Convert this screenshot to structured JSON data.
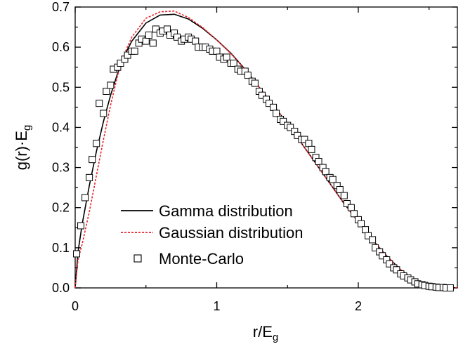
{
  "chart_data": {
    "type": "line",
    "xlabel": {
      "base": "r/E",
      "sub": "g"
    },
    "ylabel": {
      "base": "g(r)·E",
      "sub": "g"
    },
    "xlim": [
      0,
      2.7
    ],
    "ylim": [
      0,
      0.7
    ],
    "xticks": [
      "0",
      "1",
      "2"
    ],
    "xtick_values": [
      0,
      1,
      2
    ],
    "yticks": [
      "0.0",
      "0.1",
      "0.2",
      "0.3",
      "0.4",
      "0.5",
      "0.6",
      "0.7"
    ],
    "ytick_values": [
      0.0,
      0.1,
      0.2,
      0.3,
      0.4,
      0.5,
      0.6,
      0.7
    ],
    "grid": false,
    "legend_position": "center-left",
    "series": [
      {
        "name": "Gamma distribution",
        "style": "solid-line",
        "color": "#000000",
        "x": [
          0,
          0.02,
          0.05,
          0.1,
          0.15,
          0.2,
          0.25,
          0.3,
          0.35,
          0.4,
          0.5,
          0.6,
          0.7,
          0.8,
          0.9,
          1.0,
          1.1,
          1.2,
          1.3,
          1.4,
          1.5,
          1.6,
          1.7,
          1.8,
          1.9,
          2.0,
          2.1,
          2.2,
          2.3,
          2.4,
          2.5,
          2.6,
          2.7
        ],
        "y": [
          0.0,
          0.09,
          0.16,
          0.255,
          0.34,
          0.415,
          0.48,
          0.535,
          0.58,
          0.615,
          0.66,
          0.68,
          0.682,
          0.67,
          0.647,
          0.618,
          0.585,
          0.545,
          0.5,
          0.455,
          0.41,
          0.36,
          0.31,
          0.26,
          0.21,
          0.165,
          0.12,
          0.08,
          0.045,
          0.02,
          0.007,
          0.002,
          0.0
        ]
      },
      {
        "name": "Gaussian distribution",
        "style": "dashed-line",
        "color": "#e8262b",
        "x": [
          0,
          0.02,
          0.05,
          0.1,
          0.15,
          0.2,
          0.25,
          0.3,
          0.35,
          0.4,
          0.5,
          0.6,
          0.7,
          0.8,
          0.9,
          1.0,
          1.1,
          1.2,
          1.3,
          1.4,
          1.5,
          1.6,
          1.7,
          1.8,
          1.9,
          2.0,
          2.1,
          2.2,
          2.3,
          2.4,
          2.5,
          2.6,
          2.7
        ],
        "y": [
          0.0,
          0.07,
          0.11,
          0.19,
          0.28,
          0.37,
          0.455,
          0.53,
          0.585,
          0.625,
          0.672,
          0.688,
          0.69,
          0.674,
          0.649,
          0.618,
          0.584,
          0.545,
          0.5,
          0.455,
          0.41,
          0.36,
          0.31,
          0.26,
          0.21,
          0.164,
          0.12,
          0.08,
          0.045,
          0.02,
          0.007,
          0.002,
          0.0
        ]
      },
      {
        "name": "Monte-Carlo",
        "style": "open-square-markers",
        "color": "#000000",
        "x": [
          0.01,
          0.04,
          0.07,
          0.1,
          0.12,
          0.15,
          0.17,
          0.2,
          0.22,
          0.25,
          0.27,
          0.3,
          0.32,
          0.35,
          0.37,
          0.4,
          0.42,
          0.45,
          0.47,
          0.5,
          0.52,
          0.55,
          0.57,
          0.6,
          0.62,
          0.65,
          0.67,
          0.7,
          0.72,
          0.75,
          0.77,
          0.8,
          0.82,
          0.85,
          0.87,
          0.9,
          0.92,
          0.95,
          0.97,
          1.0,
          1.02,
          1.05,
          1.07,
          1.1,
          1.12,
          1.15,
          1.17,
          1.2,
          1.22,
          1.25,
          1.27,
          1.3,
          1.32,
          1.35,
          1.37,
          1.4,
          1.42,
          1.45,
          1.47,
          1.5,
          1.52,
          1.55,
          1.57,
          1.6,
          1.62,
          1.65,
          1.67,
          1.7,
          1.72,
          1.75,
          1.77,
          1.8,
          1.82,
          1.85,
          1.87,
          1.9,
          1.92,
          1.95,
          1.97,
          2.0,
          2.02,
          2.05,
          2.07,
          2.1,
          2.12,
          2.15,
          2.17,
          2.2,
          2.22,
          2.25,
          2.27,
          2.3,
          2.32,
          2.35,
          2.37,
          2.4,
          2.42,
          2.45,
          2.47,
          2.5,
          2.52,
          2.55,
          2.57,
          2.6,
          2.62,
          2.65
        ],
        "y": [
          0.085,
          0.155,
          0.225,
          0.275,
          0.32,
          0.36,
          0.46,
          0.435,
          0.49,
          0.505,
          0.545,
          0.55,
          0.56,
          0.57,
          0.58,
          0.59,
          0.59,
          0.61,
          0.62,
          0.615,
          0.63,
          0.61,
          0.645,
          0.635,
          0.64,
          0.645,
          0.63,
          0.635,
          0.625,
          0.615,
          0.62,
          0.625,
          0.62,
          0.615,
          0.6,
          0.6,
          0.6,
          0.595,
          0.59,
          0.59,
          0.575,
          0.57,
          0.575,
          0.56,
          0.56,
          0.545,
          0.54,
          0.54,
          0.53,
          0.515,
          0.51,
          0.49,
          0.48,
          0.47,
          0.46,
          0.45,
          0.435,
          0.42,
          0.415,
          0.405,
          0.4,
          0.39,
          0.38,
          0.37,
          0.37,
          0.36,
          0.345,
          0.325,
          0.315,
          0.3,
          0.29,
          0.275,
          0.27,
          0.255,
          0.245,
          0.23,
          0.21,
          0.2,
          0.185,
          0.17,
          0.16,
          0.145,
          0.13,
          0.12,
          0.1,
          0.09,
          0.08,
          0.07,
          0.06,
          0.05,
          0.045,
          0.035,
          0.03,
          0.025,
          0.02,
          0.015,
          0.01,
          0.008,
          0.006,
          0.004,
          0.003,
          0.002,
          0.001,
          0.001,
          0.0,
          0.0
        ]
      }
    ]
  }
}
